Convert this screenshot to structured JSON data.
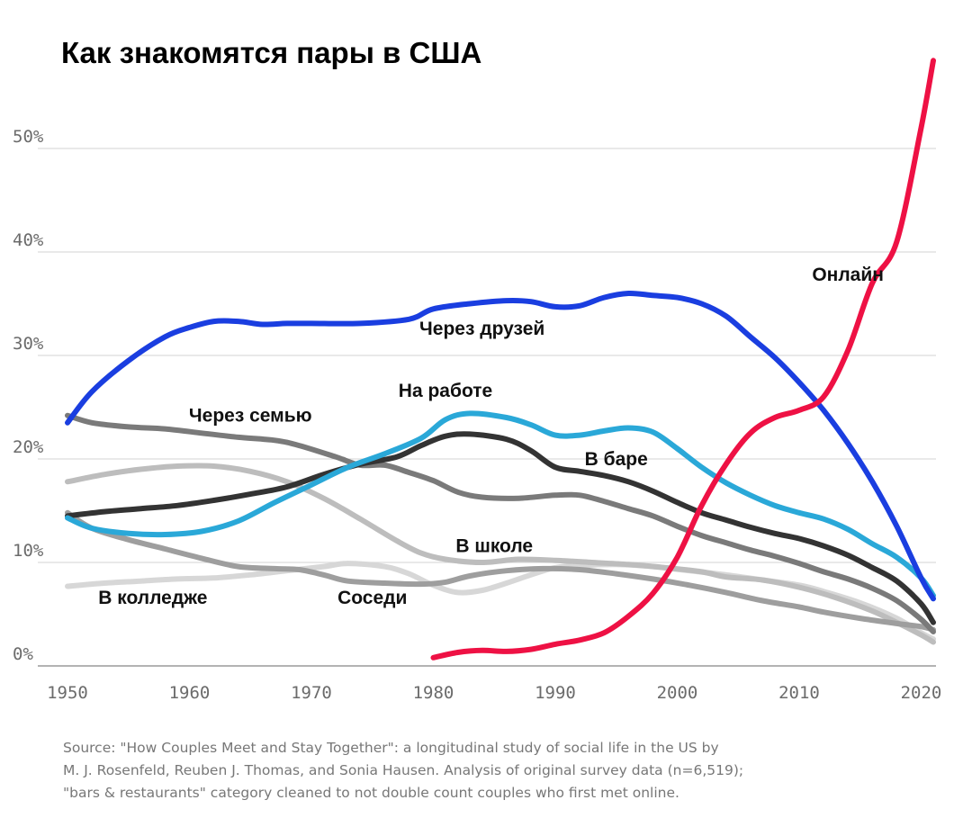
{
  "chart_data": {
    "type": "line",
    "title": "Как знакомятся пары в США",
    "xlabel": "",
    "ylabel": "",
    "xlim": [
      1950,
      2021
    ],
    "ylim": [
      0,
      60
    ],
    "x_ticks": [
      1950,
      1960,
      1970,
      1980,
      1990,
      2000,
      2010,
      2020
    ],
    "x_tick_labels": [
      "1950",
      "1960",
      "1970",
      "1980",
      "1990",
      "2000",
      "2010",
      "2020"
    ],
    "y_ticks": [
      0,
      10,
      20,
      30,
      40,
      50
    ],
    "y_tick_labels": [
      "0%",
      "10%",
      "20%",
      "30%",
      "40%",
      "50%"
    ],
    "grid": true,
    "series": [
      {
        "name": "Онлайн",
        "color": "#ee1144",
        "label": "Онлайн",
        "label_x": 2014,
        "label_y": 37.2,
        "points": [
          [
            1980,
            0.8
          ],
          [
            1982,
            1.3
          ],
          [
            1984,
            1.5
          ],
          [
            1986,
            1.4
          ],
          [
            1988,
            1.6
          ],
          [
            1990,
            2.1
          ],
          [
            1992,
            2.5
          ],
          [
            1994,
            3.2
          ],
          [
            1996,
            4.8
          ],
          [
            1998,
            7.0
          ],
          [
            2000,
            10.5
          ],
          [
            2002,
            15.5
          ],
          [
            2004,
            19.5
          ],
          [
            2006,
            22.5
          ],
          [
            2008,
            24.0
          ],
          [
            2010,
            24.7
          ],
          [
            2012,
            26.0
          ],
          [
            2014,
            30.5
          ],
          [
            2016,
            37.0
          ],
          [
            2018,
            41.0
          ],
          [
            2020,
            52.0
          ],
          [
            2021,
            58.5
          ]
        ]
      },
      {
        "name": "Через друзей",
        "color": "#1a3ee0",
        "label": "Через друзей",
        "label_x": 1984,
        "label_y": 32.0,
        "points": [
          [
            1950,
            23.5
          ],
          [
            1952,
            26.5
          ],
          [
            1955,
            29.5
          ],
          [
            1958,
            31.8
          ],
          [
            1960,
            32.7
          ],
          [
            1962,
            33.3
          ],
          [
            1964,
            33.3
          ],
          [
            1966,
            33.0
          ],
          [
            1968,
            33.1
          ],
          [
            1970,
            33.1
          ],
          [
            1974,
            33.1
          ],
          [
            1978,
            33.5
          ],
          [
            1980,
            34.5
          ],
          [
            1983,
            35.0
          ],
          [
            1986,
            35.3
          ],
          [
            1988,
            35.2
          ],
          [
            1990,
            34.7
          ],
          [
            1992,
            34.8
          ],
          [
            1994,
            35.6
          ],
          [
            1996,
            36.0
          ],
          [
            1998,
            35.8
          ],
          [
            2000,
            35.6
          ],
          [
            2002,
            35.0
          ],
          [
            2004,
            33.8
          ],
          [
            2006,
            31.8
          ],
          [
            2008,
            29.8
          ],
          [
            2010,
            27.4
          ],
          [
            2012,
            24.7
          ],
          [
            2014,
            21.5
          ],
          [
            2016,
            17.8
          ],
          [
            2018,
            13.5
          ],
          [
            2020,
            8.5
          ],
          [
            2021,
            6.5
          ]
        ]
      },
      {
        "name": "На работе",
        "color": "#2aa8d8",
        "label": "На работе",
        "label_x": 1981,
        "label_y": 26.0,
        "points": [
          [
            1950,
            14.3
          ],
          [
            1952,
            13.3
          ],
          [
            1955,
            12.8
          ],
          [
            1958,
            12.7
          ],
          [
            1961,
            13.0
          ],
          [
            1964,
            14.0
          ],
          [
            1967,
            15.8
          ],
          [
            1970,
            17.5
          ],
          [
            1973,
            19.2
          ],
          [
            1976,
            20.5
          ],
          [
            1979,
            22.0
          ],
          [
            1981,
            23.8
          ],
          [
            1983,
            24.4
          ],
          [
            1986,
            24.0
          ],
          [
            1988,
            23.3
          ],
          [
            1990,
            22.3
          ],
          [
            1992,
            22.3
          ],
          [
            1994,
            22.7
          ],
          [
            1996,
            23.0
          ],
          [
            1998,
            22.6
          ],
          [
            2000,
            21.0
          ],
          [
            2002,
            19.2
          ],
          [
            2004,
            17.7
          ],
          [
            2006,
            16.5
          ],
          [
            2008,
            15.5
          ],
          [
            2010,
            14.8
          ],
          [
            2012,
            14.2
          ],
          [
            2014,
            13.2
          ],
          [
            2016,
            11.8
          ],
          [
            2018,
            10.5
          ],
          [
            2020,
            8.5
          ],
          [
            2021,
            6.8
          ]
        ]
      },
      {
        "name": "В баре",
        "color": "#333333",
        "label": "В баре",
        "label_x": 1995,
        "label_y": 19.4,
        "points": [
          [
            1950,
            14.5
          ],
          [
            1953,
            14.9
          ],
          [
            1956,
            15.2
          ],
          [
            1959,
            15.5
          ],
          [
            1962,
            16.0
          ],
          [
            1965,
            16.6
          ],
          [
            1968,
            17.3
          ],
          [
            1971,
            18.5
          ],
          [
            1974,
            19.5
          ],
          [
            1977,
            20.2
          ],
          [
            1979,
            21.3
          ],
          [
            1981,
            22.2
          ],
          [
            1983,
            22.4
          ],
          [
            1986,
            21.9
          ],
          [
            1988,
            20.8
          ],
          [
            1990,
            19.2
          ],
          [
            1992,
            18.8
          ],
          [
            1994,
            18.4
          ],
          [
            1996,
            17.8
          ],
          [
            1998,
            16.9
          ],
          [
            2000,
            15.8
          ],
          [
            2002,
            14.8
          ],
          [
            2004,
            14.1
          ],
          [
            2006,
            13.4
          ],
          [
            2008,
            12.8
          ],
          [
            2010,
            12.3
          ],
          [
            2012,
            11.6
          ],
          [
            2014,
            10.7
          ],
          [
            2016,
            9.5
          ],
          [
            2018,
            8.2
          ],
          [
            2020,
            6.0
          ],
          [
            2021,
            4.2
          ]
        ]
      },
      {
        "name": "Через семью",
        "color": "#7a7a7a",
        "label": "Через семью",
        "label_x": 1965,
        "label_y": 23.6,
        "points": [
          [
            1950,
            24.2
          ],
          [
            1952,
            23.5
          ],
          [
            1955,
            23.1
          ],
          [
            1958,
            22.9
          ],
          [
            1961,
            22.5
          ],
          [
            1964,
            22.1
          ],
          [
            1967,
            21.8
          ],
          [
            1969,
            21.3
          ],
          [
            1972,
            20.2
          ],
          [
            1974,
            19.4
          ],
          [
            1976,
            19.4
          ],
          [
            1978,
            18.7
          ],
          [
            1980,
            17.9
          ],
          [
            1982,
            16.8
          ],
          [
            1984,
            16.3
          ],
          [
            1987,
            16.2
          ],
          [
            1990,
            16.5
          ],
          [
            1992,
            16.5
          ],
          [
            1994,
            15.9
          ],
          [
            1996,
            15.2
          ],
          [
            1998,
            14.5
          ],
          [
            2000,
            13.5
          ],
          [
            2002,
            12.6
          ],
          [
            2004,
            11.9
          ],
          [
            2006,
            11.2
          ],
          [
            2008,
            10.6
          ],
          [
            2010,
            9.9
          ],
          [
            2012,
            9.1
          ],
          [
            2014,
            8.4
          ],
          [
            2016,
            7.5
          ],
          [
            2018,
            6.3
          ],
          [
            2020,
            4.5
          ],
          [
            2021,
            3.3
          ]
        ]
      },
      {
        "name": "В школе",
        "color": "#bdbdbd",
        "label": "В школе",
        "label_x": 1985,
        "label_y": 11.0,
        "points": [
          [
            1950,
            17.8
          ],
          [
            1953,
            18.5
          ],
          [
            1956,
            19.0
          ],
          [
            1959,
            19.3
          ],
          [
            1962,
            19.3
          ],
          [
            1965,
            18.8
          ],
          [
            1968,
            17.8
          ],
          [
            1971,
            16.2
          ],
          [
            1974,
            14.2
          ],
          [
            1977,
            12.1
          ],
          [
            1979,
            10.9
          ],
          [
            1981,
            10.3
          ],
          [
            1984,
            10.0
          ],
          [
            1987,
            10.3
          ],
          [
            1990,
            10.2
          ],
          [
            1993,
            10.0
          ],
          [
            1996,
            9.8
          ],
          [
            1999,
            9.5
          ],
          [
            2002,
            9.1
          ],
          [
            2004,
            8.6
          ],
          [
            2007,
            8.3
          ],
          [
            2010,
            7.6
          ],
          [
            2013,
            6.6
          ],
          [
            2016,
            5.3
          ],
          [
            2018,
            4.2
          ],
          [
            2020,
            3.0
          ],
          [
            2021,
            2.3
          ]
        ]
      },
      {
        "name": "В колледже",
        "color": "#d7d7d7",
        "label": "В колледже",
        "label_x": 1957,
        "label_y": 6.0,
        "points": [
          [
            1950,
            7.7
          ],
          [
            1953,
            8.0
          ],
          [
            1956,
            8.2
          ],
          [
            1959,
            8.4
          ],
          [
            1962,
            8.5
          ],
          [
            1965,
            8.8
          ],
          [
            1968,
            9.2
          ],
          [
            1971,
            9.6
          ],
          [
            1973,
            9.9
          ],
          [
            1976,
            9.6
          ],
          [
            1978,
            8.9
          ],
          [
            1980,
            7.8
          ],
          [
            1982,
            7.1
          ],
          [
            1984,
            7.3
          ],
          [
            1986,
            8.0
          ],
          [
            1988,
            8.8
          ],
          [
            1990,
            9.5
          ],
          [
            1992,
            9.7
          ],
          [
            1995,
            9.8
          ],
          [
            1998,
            9.6
          ],
          [
            2001,
            9.2
          ],
          [
            2004,
            8.8
          ],
          [
            2007,
            8.3
          ],
          [
            2010,
            7.8
          ],
          [
            2012,
            7.2
          ],
          [
            2015,
            6.1
          ],
          [
            2018,
            4.6
          ],
          [
            2020,
            3.2
          ],
          [
            2021,
            2.6
          ]
        ]
      },
      {
        "name": "Соседи",
        "color": "#9e9e9e",
        "label": "Соседи",
        "label_x": 1975,
        "label_y": 6.0,
        "points": [
          [
            1950,
            14.8
          ],
          [
            1952,
            13.3
          ],
          [
            1955,
            12.2
          ],
          [
            1958,
            11.3
          ],
          [
            1961,
            10.4
          ],
          [
            1964,
            9.6
          ],
          [
            1967,
            9.4
          ],
          [
            1969,
            9.3
          ],
          [
            1971,
            8.8
          ],
          [
            1973,
            8.2
          ],
          [
            1976,
            8.0
          ],
          [
            1979,
            7.9
          ],
          [
            1981,
            8.1
          ],
          [
            1983,
            8.7
          ],
          [
            1986,
            9.2
          ],
          [
            1989,
            9.4
          ],
          [
            1992,
            9.3
          ],
          [
            1995,
            8.9
          ],
          [
            1998,
            8.4
          ],
          [
            2001,
            7.8
          ],
          [
            2004,
            7.1
          ],
          [
            2007,
            6.3
          ],
          [
            2010,
            5.7
          ],
          [
            2012,
            5.2
          ],
          [
            2015,
            4.6
          ],
          [
            2018,
            4.1
          ],
          [
            2020,
            3.8
          ],
          [
            2021,
            3.5
          ]
        ]
      }
    ]
  },
  "source_lines": [
    "Source: \"How Couples Meet and Stay Together\": a longitudinal study of social life in the US by",
    "M. J. Rosenfeld, Reuben J. Thomas, and Sonia Hausen. Analysis of original survey data (n=6,519);",
    "\"bars & restaurants\" category cleaned to not double count couples who first met online."
  ]
}
